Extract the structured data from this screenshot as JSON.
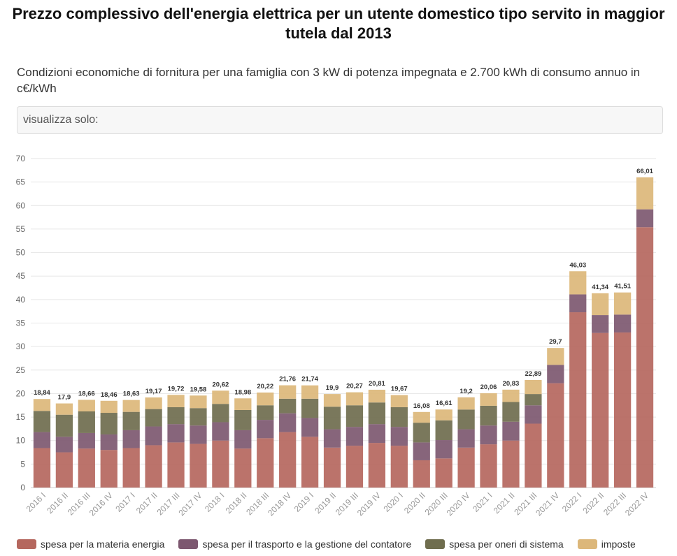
{
  "header": {
    "title": "Prezzo complessivo dell'energia elettrica per un utente domestico tipo servito in maggior tutela dal 2013",
    "subtitle": "Condizioni economiche di fornitura per una famiglia con 3 kW di potenza impegnata e 2.700 kWh di consumo annuo in c€/kWh"
  },
  "filter": {
    "label": "visualizza solo:"
  },
  "chart_data": {
    "type": "bar",
    "stacked": true,
    "title": "Prezzo complessivo dell'energia elettrica per un utente domestico tipo servito in maggior tutela dal 2013",
    "subtitle": "Condizioni economiche di fornitura per una famiglia con 3 kW di potenza impegnata e 2.700 kWh di consumo annuo in c€/kWh",
    "xlabel": "",
    "ylabel": "",
    "ylim": [
      0,
      70
    ],
    "yticks": [
      0,
      5,
      10,
      15,
      20,
      25,
      30,
      35,
      40,
      45,
      50,
      55,
      60,
      65,
      70
    ],
    "grid": true,
    "legend_position": "bottom-left",
    "categories": [
      "2016 I",
      "2016 II",
      "2016 III",
      "2016 IV",
      "2017 I",
      "2017 II",
      "2017 III",
      "2017 IV",
      "2018 I",
      "2018 II",
      "2018 III",
      "2018 IV",
      "2019 I",
      "2019 II",
      "2019 III",
      "2019 IV",
      "2020 I",
      "2020 II",
      "2020 III",
      "2020 IV",
      "2021 I",
      "2021 II",
      "2021 III",
      "2021 IV",
      "2022 I",
      "2022 II",
      "2022 III",
      "2022 IV"
    ],
    "totals": [
      "18,84",
      "17,9",
      "18,66",
      "18,46",
      "18,63",
      "19,17",
      "19,72",
      "19,58",
      "20,62",
      "18,98",
      "20,22",
      "21,76",
      "21,74",
      "19,9",
      "20,27",
      "20,81",
      "19,67",
      "16,08",
      "16,61",
      "19,2",
      "20,06",
      "20,83",
      "22,89",
      "29,7",
      "46,03",
      "41,34",
      "41,51",
      "66,01"
    ],
    "series": [
      {
        "name": "spesa per la materia energia",
        "color": "#b5675e",
        "values": [
          8.4,
          7.5,
          8.3,
          8.0,
          8.4,
          9.0,
          9.6,
          9.3,
          10.0,
          8.3,
          10.5,
          11.8,
          10.8,
          8.5,
          8.9,
          9.5,
          8.9,
          5.8,
          6.2,
          8.5,
          9.2,
          10.0,
          13.6,
          22.2,
          37.3,
          32.9,
          33.0,
          55.4
        ]
      },
      {
        "name": "spesa per il trasporto e la gestione del contatore",
        "color": "#7d5870",
        "values": [
          3.4,
          3.3,
          3.3,
          3.3,
          3.8,
          4.0,
          3.9,
          3.9,
          3.9,
          3.9,
          3.9,
          4.0,
          4.0,
          3.9,
          4.0,
          4.0,
          4.0,
          3.8,
          3.9,
          3.9,
          4.0,
          4.0,
          3.9,
          3.9,
          3.8,
          3.8,
          3.8,
          3.8
        ]
      },
      {
        "name": "spesa per oneri di sistema",
        "color": "#6f6d4e",
        "values": [
          4.5,
          4.7,
          4.6,
          4.6,
          3.9,
          3.7,
          3.6,
          3.7,
          3.9,
          4.3,
          3.1,
          3.1,
          4.1,
          4.8,
          4.6,
          4.6,
          4.2,
          4.2,
          4.2,
          4.2,
          4.2,
          4.2,
          2.4,
          0.0,
          0.0,
          0.0,
          0.0,
          0.0
        ]
      },
      {
        "name": "imposte",
        "color": "#dcb77a",
        "values": [
          2.54,
          2.4,
          2.46,
          2.56,
          2.53,
          2.47,
          2.62,
          2.68,
          2.82,
          2.48,
          2.72,
          2.86,
          2.84,
          2.7,
          2.77,
          2.71,
          2.57,
          2.28,
          2.31,
          2.6,
          2.66,
          2.63,
          2.99,
          3.6,
          4.93,
          4.64,
          4.71,
          6.81
        ]
      }
    ]
  }
}
